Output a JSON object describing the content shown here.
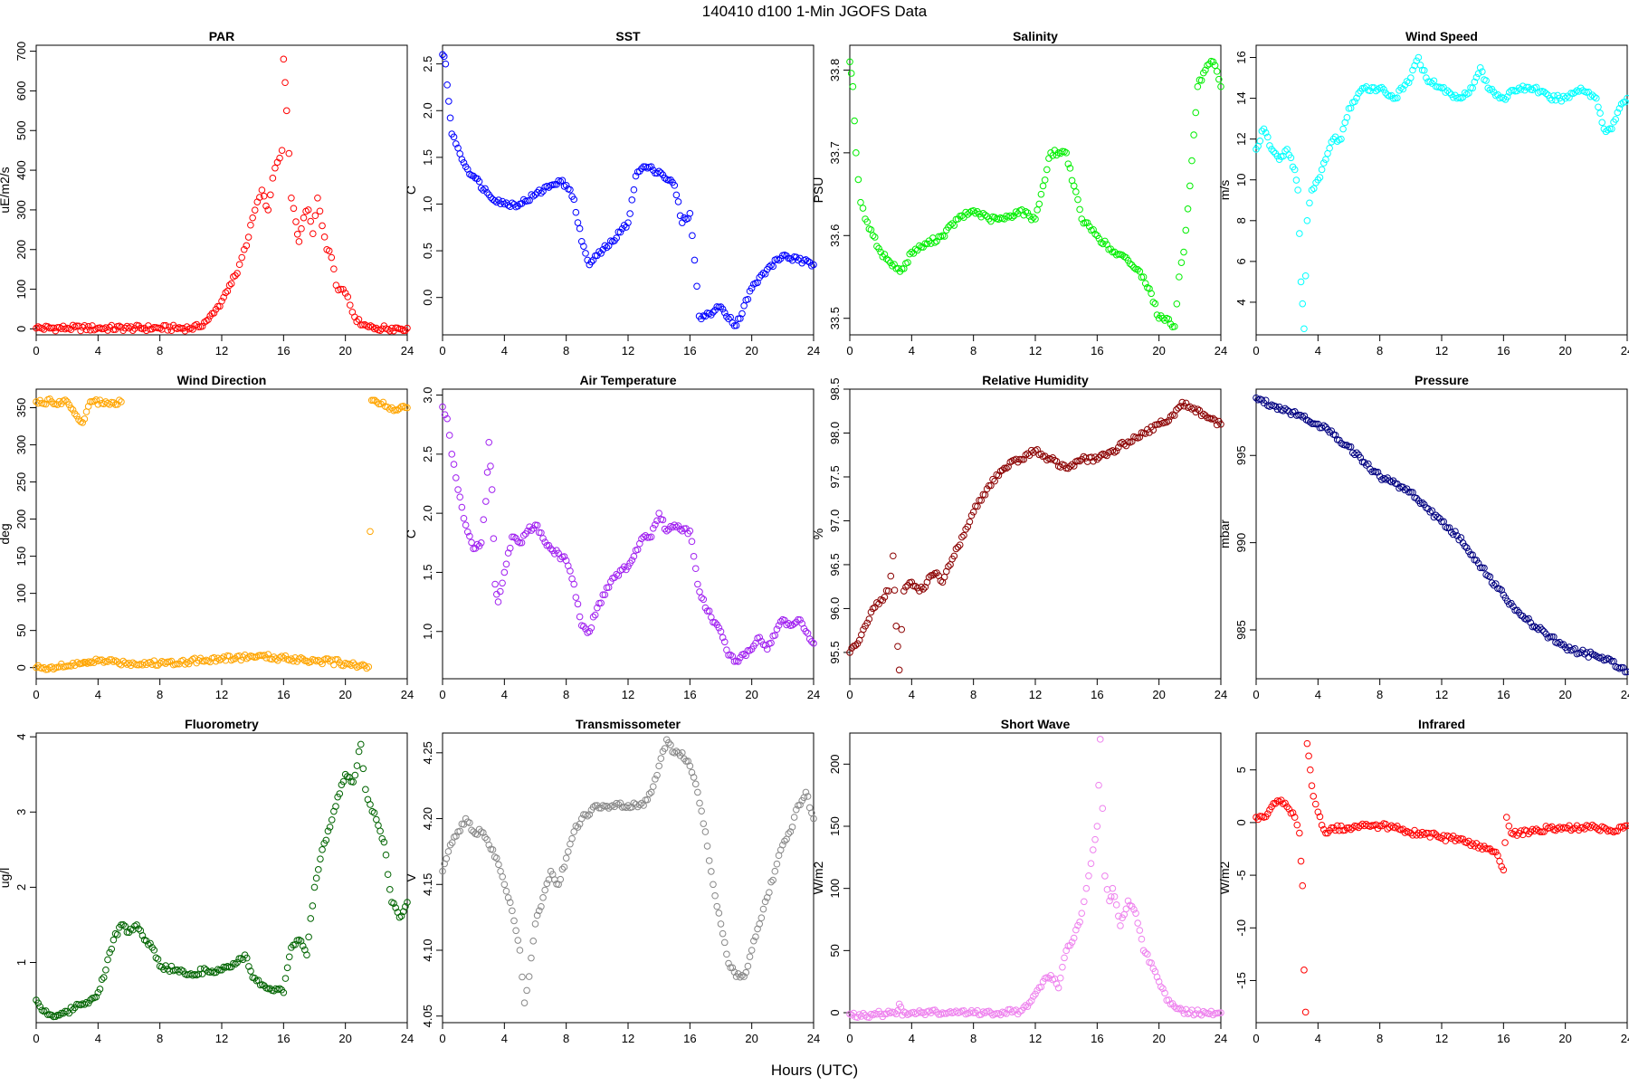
{
  "figure": {
    "title": "140410   d100   1-Min  JGOFS Data",
    "xlabel": "Hours (UTC)"
  },
  "chart_data": [
    {
      "type": "scatter",
      "title": "PAR",
      "ylabel": "uE/m2/s",
      "color": "#ff0000",
      "xlim": [
        0,
        24
      ],
      "ylim": [
        -15,
        715
      ],
      "xticks": [
        0,
        4,
        8,
        12,
        16,
        20,
        24
      ],
      "yticks": [
        0,
        100,
        200,
        300,
        400,
        500,
        600,
        700
      ],
      "x": [
        0,
        2,
        4,
        6,
        8,
        10,
        10.5,
        11,
        11.5,
        12,
        12.5,
        13,
        13.3,
        13.6,
        14,
        14.3,
        14.6,
        15,
        15.3,
        15.6,
        15.9,
        16,
        16.2,
        16.5,
        16.8,
        17,
        17.3,
        17.6,
        17.9,
        18.2,
        18.5,
        18.8,
        19.1,
        19.4,
        19.7,
        20,
        20.3,
        20.6,
        21,
        21.5,
        22,
        23,
        24
      ],
      "y": [
        2,
        2,
        2,
        2,
        2,
        2,
        5,
        20,
        40,
        70,
        110,
        140,
        180,
        210,
        280,
        320,
        350,
        300,
        380,
        420,
        450,
        680,
        550,
        330,
        270,
        220,
        280,
        300,
        240,
        330,
        260,
        200,
        180,
        110,
        100,
        90,
        60,
        30,
        10,
        5,
        2,
        2,
        2
      ]
    },
    {
      "type": "scatter",
      "title": "SST",
      "ylabel": "C",
      "color": "#0000ff",
      "xlim": [
        0,
        24
      ],
      "ylim": [
        -0.4,
        2.7
      ],
      "xticks": [
        0,
        4,
        8,
        12,
        16,
        20,
        24
      ],
      "yticks": [
        0.0,
        0.5,
        1.0,
        1.5,
        2.0,
        2.5
      ],
      "x": [
        0,
        0.2,
        0.4,
        0.6,
        1,
        1.5,
        2,
        3,
        4,
        5,
        6,
        7,
        7.5,
        8,
        8.5,
        9,
        9.5,
        10,
        11,
        12,
        12.5,
        13,
        14,
        15,
        15.5,
        16,
        16.3,
        16.6,
        17,
        18,
        19,
        20,
        21,
        22,
        23,
        24
      ],
      "y": [
        2.6,
        2.5,
        2.1,
        1.75,
        1.6,
        1.4,
        1.3,
        1.1,
        1.0,
        1.0,
        1.1,
        1.2,
        1.25,
        1.2,
        1.05,
        0.6,
        0.35,
        0.45,
        0.6,
        0.8,
        1.3,
        1.4,
        1.35,
        1.2,
        0.8,
        0.9,
        0.4,
        -0.2,
        -0.2,
        -0.1,
        -0.3,
        0.1,
        0.3,
        0.45,
        0.4,
        0.35
      ]
    },
    {
      "type": "scatter",
      "title": "Salinity",
      "ylabel": "PSU",
      "color": "#00ee00",
      "xlim": [
        0,
        24
      ],
      "ylim": [
        33.48,
        33.83
      ],
      "xticks": [
        0,
        4,
        8,
        12,
        16,
        20,
        24
      ],
      "yticks": [
        33.5,
        33.6,
        33.7,
        33.8
      ],
      "x": [
        0,
        0.2,
        0.4,
        0.7,
        1,
        1.5,
        2,
        2.5,
        3,
        3.5,
        4,
        5,
        6,
        7,
        8,
        9,
        10,
        11,
        12,
        12.5,
        13,
        13.5,
        14,
        14.5,
        15,
        16,
        17,
        18,
        19,
        19.5,
        20,
        20.5,
        21,
        21.3,
        21.6,
        22,
        22.5,
        23,
        23.5,
        24
      ],
      "y": [
        33.81,
        33.78,
        33.7,
        33.64,
        33.62,
        33.6,
        33.58,
        33.57,
        33.56,
        33.56,
        33.58,
        33.59,
        33.6,
        33.62,
        33.63,
        33.62,
        33.62,
        33.63,
        33.62,
        33.66,
        33.7,
        33.7,
        33.7,
        33.66,
        33.62,
        33.6,
        33.58,
        33.57,
        33.55,
        33.53,
        33.5,
        33.5,
        33.49,
        33.55,
        33.58,
        33.66,
        33.78,
        33.8,
        33.81,
        33.78
      ]
    },
    {
      "type": "scatter",
      "title": "Wind Speed",
      "ylabel": "m/s",
      "color": "#00ffff",
      "xlim": [
        0,
        24
      ],
      "ylim": [
        2.4,
        16.6
      ],
      "xticks": [
        0,
        4,
        8,
        12,
        16,
        20,
        24
      ],
      "yticks": [
        4,
        6,
        8,
        10,
        12,
        14,
        16
      ],
      "x": [
        0,
        0.5,
        1,
        1.5,
        2,
        2.5,
        2.7,
        2.9,
        3.1,
        3.3,
        3.6,
        4,
        4.5,
        5,
        5.5,
        6,
        7,
        8,
        9,
        10,
        10.5,
        11,
        12,
        13,
        14,
        14.5,
        15,
        16,
        17,
        18,
        19,
        20,
        21,
        22,
        22.5,
        23,
        23.5,
        24
      ],
      "y": [
        11.5,
        12.5,
        11.5,
        11,
        11.5,
        10.5,
        9.5,
        5,
        2.7,
        8,
        9.5,
        10,
        11,
        12,
        12,
        13.5,
        14.5,
        14.5,
        14,
        15,
        16,
        15,
        14.5,
        14,
        14.5,
        15.5,
        14.5,
        14,
        14.5,
        14.5,
        14,
        14,
        14.5,
        14,
        12.5,
        12.5,
        13.5,
        14
      ]
    },
    {
      "type": "scatter",
      "title": "Wind Direction",
      "ylabel": "deg",
      "color": "#ffa500",
      "xlim": [
        0,
        24
      ],
      "ylim": [
        -15,
        375
      ],
      "xticks": [
        0,
        4,
        8,
        12,
        16,
        20,
        24
      ],
      "yticks": [
        0,
        50,
        100,
        150,
        200,
        250,
        300,
        350
      ],
      "x": [
        0,
        0.5,
        1,
        1.5,
        2,
        2.5,
        2.8,
        3,
        3.2,
        3.4,
        3.6,
        4,
        5,
        6,
        8,
        10,
        12,
        14,
        16,
        18,
        20,
        21,
        21.5,
        21.7,
        21.9,
        22.3,
        23,
        24,
        0,
        1,
        2,
        3,
        3.5,
        4.5,
        5.5
      ],
      "y": [
        0,
        0,
        1,
        1,
        2,
        3,
        5,
        6,
        7,
        8,
        8,
        9,
        8,
        6,
        6,
        9,
        12,
        15,
        13,
        10,
        6,
        3,
        1,
        360,
        360,
        355,
        350,
        350,
        358,
        358,
        358,
        330,
        358,
        358,
        358
      ]
    },
    {
      "type": "scatter",
      "title": "Air Temperature",
      "ylabel": "C",
      "color": "#a020f0",
      "xlim": [
        0,
        24
      ],
      "ylim": [
        0.6,
        3.05
      ],
      "xticks": [
        0,
        4,
        8,
        12,
        16,
        20,
        24
      ],
      "yticks": [
        1.0,
        1.5,
        2.0,
        2.5,
        3.0
      ],
      "x": [
        0,
        0.3,
        0.6,
        1,
        1.5,
        2,
        2.5,
        2.8,
        3,
        3.2,
        3.4,
        3.6,
        4,
        4.5,
        5,
        5.5,
        6,
        7,
        8,
        8.5,
        9,
        9.5,
        10,
        11,
        12,
        13,
        13.5,
        14,
        14.5,
        15,
        15.5,
        16,
        16.5,
        17,
        18,
        18.5,
        19,
        20,
        20.5,
        21,
        22,
        22.5,
        23,
        23.5,
        24
      ],
      "y": [
        2.9,
        2.8,
        2.5,
        2.2,
        1.9,
        1.7,
        1.75,
        2.1,
        2.6,
        2.2,
        1.4,
        1.25,
        1.5,
        1.8,
        1.75,
        1.85,
        1.9,
        1.7,
        1.6,
        1.4,
        1.05,
        1.0,
        1.2,
        1.45,
        1.55,
        1.8,
        1.8,
        2.0,
        1.85,
        1.9,
        1.85,
        1.85,
        1.4,
        1.2,
        1.0,
        0.8,
        0.75,
        0.85,
        0.95,
        0.85,
        1.1,
        1.05,
        1.1,
        1.0,
        0.9
      ]
    },
    {
      "type": "scatter",
      "title": "Relative Humidity",
      "ylabel": "%",
      "color": "#8b0000",
      "xlim": [
        0,
        24
      ],
      "ylim": [
        95.2,
        98.5
      ],
      "xticks": [
        0,
        4,
        8,
        12,
        16,
        20,
        24
      ],
      "yticks": [
        95.5,
        96.0,
        96.5,
        97.0,
        97.5,
        98.0,
        98.5
      ],
      "x": [
        0,
        0.5,
        1,
        1.5,
        2,
        2.5,
        2.8,
        3,
        3.2,
        3.5,
        4,
        4.5,
        5,
        5.5,
        6,
        6.5,
        7,
        8,
        9,
        10,
        11,
        12,
        13,
        14,
        15,
        16,
        17,
        18,
        19,
        20,
        21,
        21.5,
        22,
        23,
        24
      ],
      "y": [
        95.5,
        95.6,
        95.8,
        96.0,
        96.1,
        96.2,
        96.6,
        95.8,
        95.3,
        96.2,
        96.3,
        96.2,
        96.3,
        96.4,
        96.3,
        96.5,
        96.7,
        97.1,
        97.4,
        97.6,
        97.7,
        97.8,
        97.7,
        97.6,
        97.7,
        97.7,
        97.8,
        97.9,
        98.0,
        98.1,
        98.2,
        98.35,
        98.3,
        98.2,
        98.1
      ]
    },
    {
      "type": "scatter",
      "title": "Pressure",
      "ylabel": "mbar",
      "color": "#000080",
      "xlim": [
        0,
        24
      ],
      "ylim": [
        982.2,
        998.8
      ],
      "xticks": [
        0,
        4,
        8,
        12,
        16,
        20,
        24
      ],
      "yticks": [
        985,
        990,
        995
      ],
      "x": [
        0,
        1,
        2,
        3,
        4,
        5,
        6,
        7,
        8,
        9,
        10,
        11,
        12,
        13,
        14,
        15,
        16,
        17,
        18,
        19,
        20,
        21,
        22,
        23,
        24
      ],
      "y": [
        998.3,
        997.9,
        997.6,
        997.2,
        996.8,
        996.2,
        995.5,
        994.6,
        993.8,
        993.4,
        992.9,
        992.0,
        991.2,
        990.4,
        989.3,
        988.1,
        987.0,
        986.0,
        985.2,
        984.6,
        984.0,
        983.7,
        983.5,
        983.2,
        982.6
      ]
    },
    {
      "type": "scatter",
      "title": "Fluorometry",
      "ylabel": "ug/l",
      "color": "#006400",
      "xlim": [
        0,
        24
      ],
      "ylim": [
        0.2,
        4.05
      ],
      "xticks": [
        0,
        4,
        8,
        12,
        16,
        20,
        24
      ],
      "yticks": [
        1,
        2,
        3,
        4
      ],
      "x": [
        0,
        0.5,
        1,
        1.5,
        2,
        2.5,
        3,
        3.5,
        4,
        4.5,
        5,
        5.5,
        6,
        6.5,
        7,
        7.5,
        8,
        9,
        10,
        11,
        12,
        13,
        13.5,
        14,
        14.5,
        15,
        15.5,
        16,
        16.5,
        17,
        17.5,
        18,
        18.5,
        19,
        19.5,
        20,
        20.5,
        21,
        21.3,
        21.6,
        22,
        22.5,
        23,
        23.5,
        24
      ],
      "y": [
        0.5,
        0.35,
        0.3,
        0.3,
        0.35,
        0.4,
        0.45,
        0.5,
        0.6,
        0.9,
        1.3,
        1.5,
        1.4,
        1.5,
        1.3,
        1.2,
        0.95,
        0.9,
        0.85,
        0.9,
        0.9,
        1.0,
        1.1,
        0.8,
        0.7,
        0.65,
        0.65,
        0.6,
        1.2,
        1.3,
        1.1,
        2.0,
        2.5,
        2.8,
        3.2,
        3.5,
        3.4,
        3.9,
        3.3,
        3.1,
        2.9,
        2.6,
        1.8,
        1.6,
        1.8
      ]
    },
    {
      "type": "scatter",
      "title": "Transmissometer",
      "ylabel": "V",
      "color": "#888888",
      "xlim": [
        0,
        24
      ],
      "ylim": [
        4.045,
        4.265
      ],
      "xticks": [
        0,
        4,
        8,
        12,
        16,
        20,
        24
      ],
      "yticks": [
        4.05,
        4.1,
        4.15,
        4.2,
        4.25
      ],
      "x": [
        0,
        0.5,
        1,
        1.5,
        2,
        2.5,
        3,
        3.5,
        4,
        4.5,
        5,
        5.3,
        5.6,
        6,
        6.5,
        7,
        7.5,
        8,
        8.5,
        9,
        10,
        11,
        12,
        13,
        13.5,
        14,
        14.5,
        15,
        15.5,
        16,
        16.5,
        17,
        17.5,
        18,
        18.5,
        19,
        19.5,
        20,
        20.5,
        21,
        21.5,
        22,
        22.5,
        23,
        23.5,
        24
      ],
      "y": [
        4.16,
        4.18,
        4.19,
        4.2,
        4.19,
        4.19,
        4.18,
        4.17,
        4.15,
        4.13,
        4.1,
        4.06,
        4.08,
        4.12,
        4.14,
        4.16,
        4.15,
        4.17,
        4.19,
        4.2,
        4.21,
        4.21,
        4.21,
        4.21,
        4.22,
        4.24,
        4.26,
        4.25,
        4.25,
        4.24,
        4.22,
        4.19,
        4.15,
        4.12,
        4.09,
        4.08,
        4.08,
        4.1,
        4.12,
        4.14,
        4.16,
        4.18,
        4.19,
        4.21,
        4.22,
        4.2
      ]
    },
    {
      "type": "scatter",
      "title": "Short Wave",
      "ylabel": "W/m2",
      "color": "#ee82ee",
      "xlim": [
        0,
        24
      ],
      "ylim": [
        -8,
        225
      ],
      "xticks": [
        0,
        4,
        8,
        12,
        16,
        20,
        24
      ],
      "yticks": [
        0,
        50,
        100,
        150,
        200
      ],
      "x": [
        0,
        1,
        2,
        3,
        3.2,
        3.4,
        3.6,
        4,
        6,
        8,
        10,
        11,
        11.5,
        12,
        12.5,
        13,
        13.5,
        14,
        14.5,
        15,
        15.3,
        15.6,
        16,
        16.2,
        16.5,
        16.8,
        17,
        17.5,
        18,
        18.5,
        19,
        19.5,
        20,
        20.5,
        21,
        21.5,
        22,
        23,
        24
      ],
      "y": [
        -1,
        -2,
        -1,
        -1,
        7,
        -2,
        0,
        0,
        0,
        0,
        0,
        1,
        5,
        15,
        25,
        30,
        20,
        50,
        60,
        80,
        100,
        120,
        150,
        220,
        110,
        90,
        100,
        70,
        90,
        80,
        50,
        40,
        25,
        10,
        5,
        2,
        0,
        0,
        0
      ]
    },
    {
      "type": "scatter",
      "title": "Infrared",
      "ylabel": "W/m2",
      "color": "#ff0000",
      "xlim": [
        0,
        24
      ],
      "ylim": [
        -19,
        8.5
      ],
      "xticks": [
        0,
        4,
        8,
        12,
        16,
        20,
        24
      ],
      "yticks": [
        -15,
        -10,
        -5,
        0,
        5
      ],
      "x": [
        0,
        0.5,
        1,
        1.5,
        2,
        2.5,
        2.8,
        3,
        3.1,
        3.2,
        3.3,
        3.5,
        3.7,
        4,
        4.5,
        5,
        6,
        7,
        8,
        9,
        10,
        11,
        12,
        13,
        14,
        15,
        15.5,
        16,
        16.2,
        16.5,
        17,
        18,
        19,
        20,
        21,
        22,
        23,
        24
      ],
      "y": [
        0.5,
        0.5,
        1.5,
        2.0,
        1.5,
        0.5,
        -1.0,
        -6,
        -14,
        -18,
        7.5,
        5,
        2.5,
        1.0,
        -1.0,
        -0.5,
        -0.5,
        -0.3,
        -0.3,
        -0.5,
        -1.0,
        -1.0,
        -1.5,
        -1.5,
        -2.0,
        -2.5,
        -2.8,
        -4.5,
        0.5,
        -1.0,
        -1.0,
        -0.8,
        -0.5,
        -0.5,
        -0.5,
        -0.5,
        -0.8,
        -0.3
      ]
    }
  ]
}
